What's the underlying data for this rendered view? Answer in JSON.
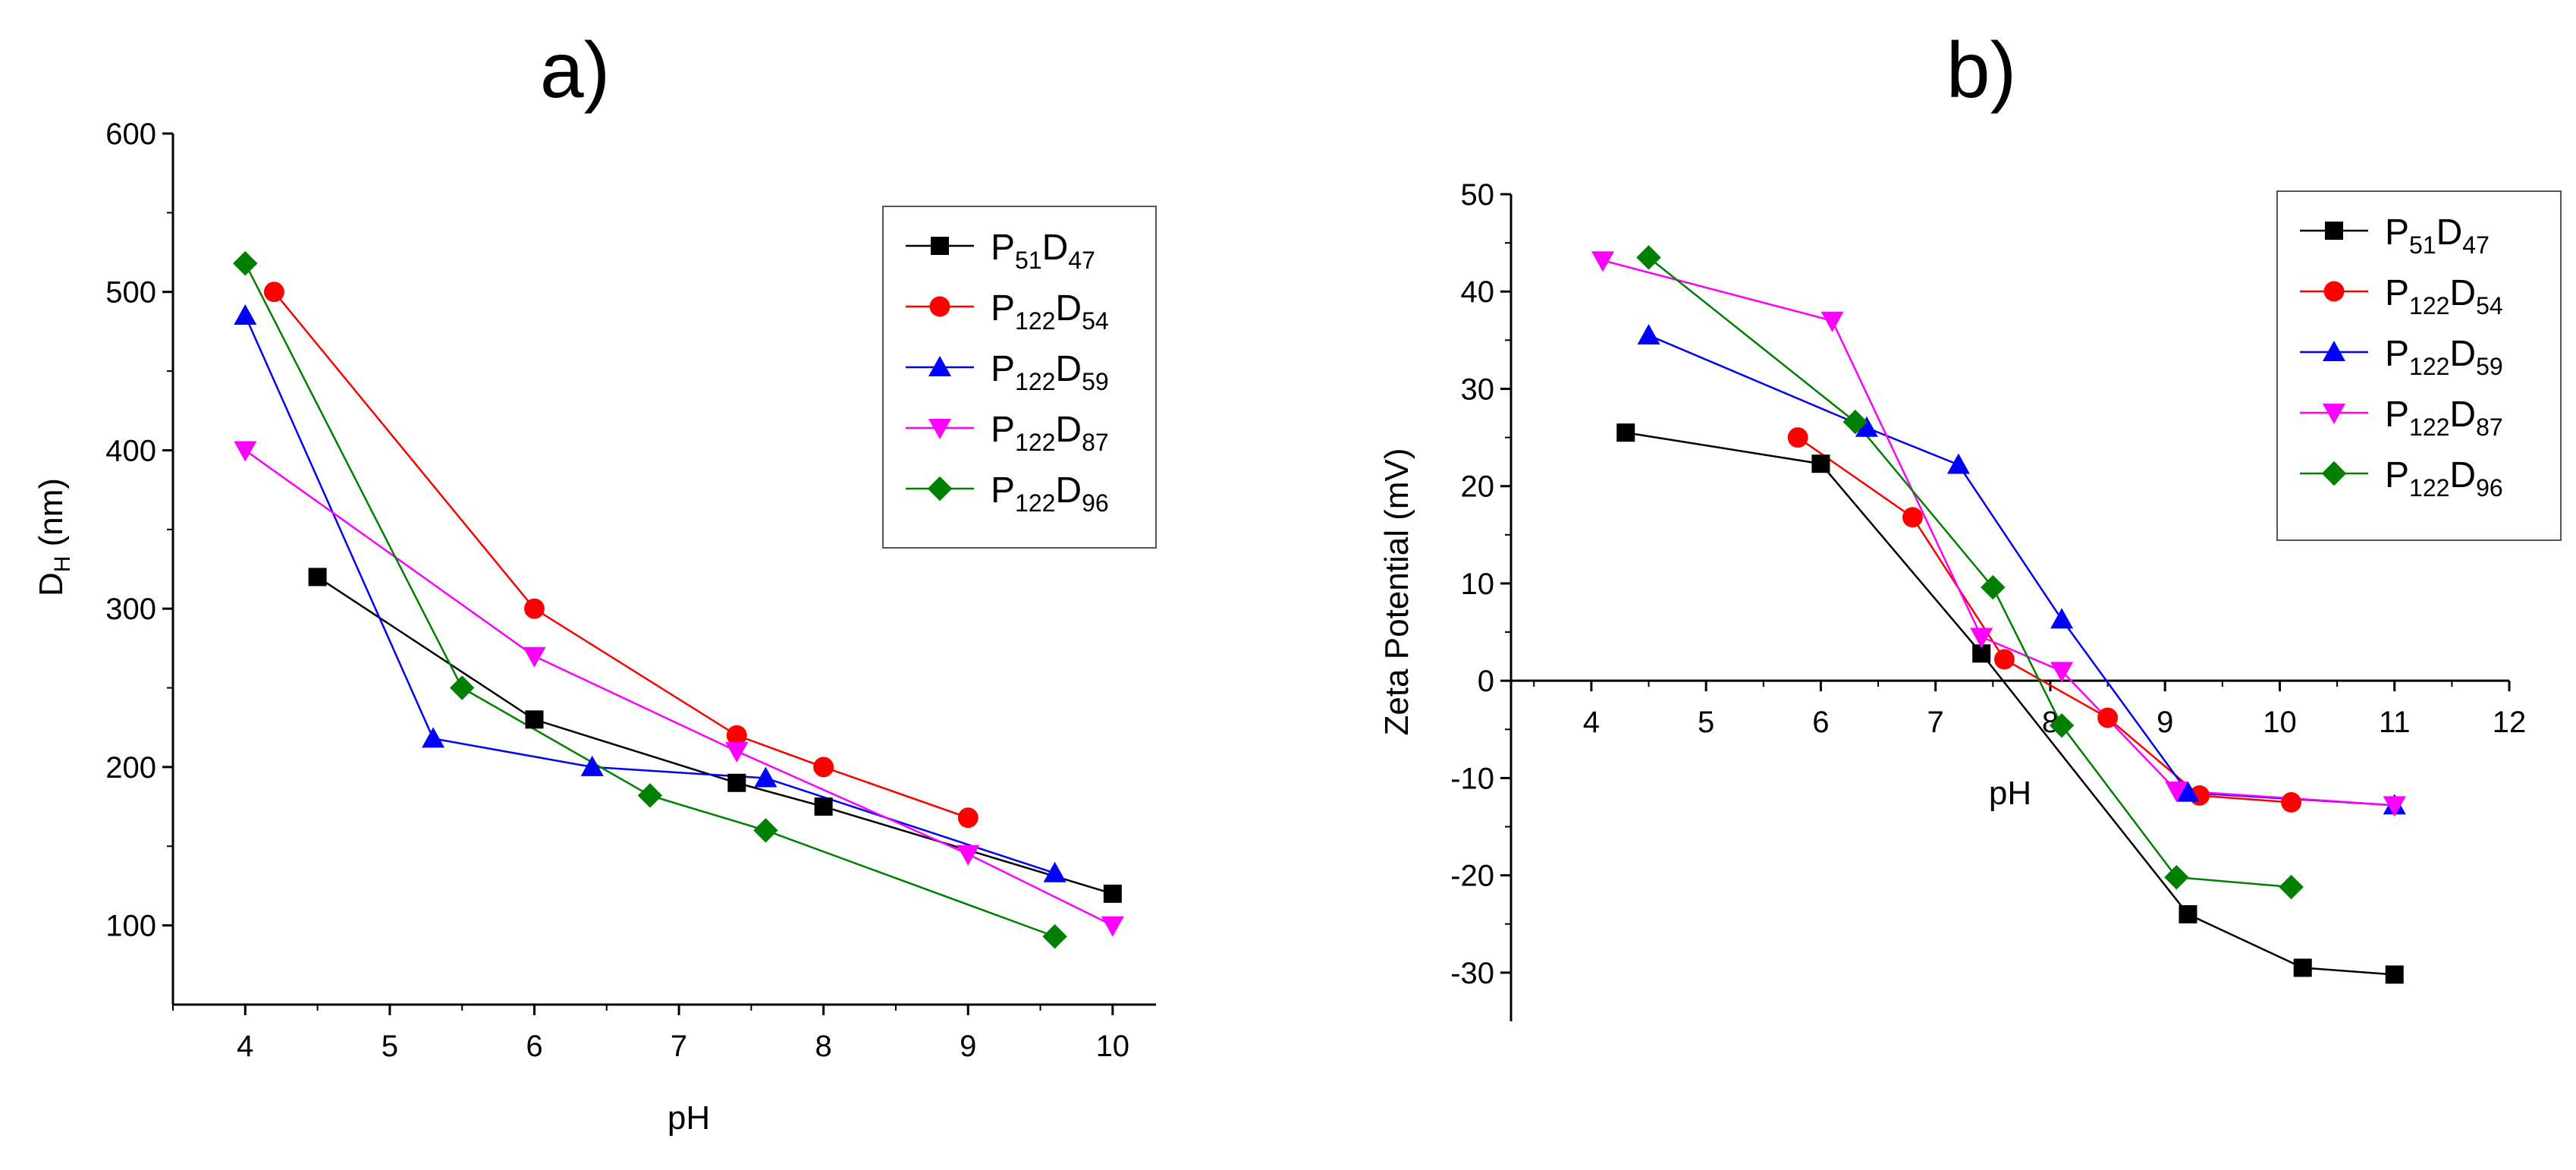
{
  "chart_data": [
    {
      "panel_label": "a)",
      "type": "line",
      "marker_style": "line+markers",
      "xlabel": "pH",
      "ylabel": {
        "main": "D",
        "sub": "H",
        "suffix": " (nm)"
      },
      "xlim": [
        3.5,
        10.3
      ],
      "ylim": [
        50,
        600
      ],
      "xticks": [
        4,
        5,
        6,
        7,
        8,
        9,
        10
      ],
      "yticks": [
        100,
        200,
        300,
        400,
        500,
        600
      ],
      "legend_position": "top-right",
      "series": [
        {
          "name": "P51D47",
          "label": {
            "p": "51",
            "d": "47"
          },
          "color": "#000000",
          "marker": "square",
          "points": [
            [
              4.5,
              320
            ],
            [
              6,
              230
            ],
            [
              7.4,
              190
            ],
            [
              8,
              175
            ],
            [
              10,
              120
            ]
          ]
        },
        {
          "name": "P122D54",
          "label": {
            "p": "122",
            "d": "54"
          },
          "color": "#ff0000",
          "marker": "circle",
          "points": [
            [
              4.2,
              500
            ],
            [
              6,
              300
            ],
            [
              7.4,
              220
            ],
            [
              8,
              200
            ],
            [
              9,
              168
            ]
          ]
        },
        {
          "name": "P122D59",
          "label": {
            "p": "122",
            "d": "59"
          },
          "color": "#0000ff",
          "marker": "triangle-up",
          "points": [
            [
              4,
              485
            ],
            [
              5.3,
              218
            ],
            [
              6.4,
              200
            ],
            [
              7.6,
              193
            ],
            [
              9.6,
              133
            ]
          ]
        },
        {
          "name": "P122D87",
          "label": {
            "p": "122",
            "d": "87"
          },
          "color": "#ff00ff",
          "marker": "triangle-down",
          "points": [
            [
              4,
              400
            ],
            [
              6,
              270
            ],
            [
              7.4,
              210
            ],
            [
              9,
              145
            ],
            [
              10,
              100
            ]
          ]
        },
        {
          "name": "P122D96",
          "label": {
            "p": "122",
            "d": "96"
          },
          "color": "#008000",
          "marker": "diamond",
          "points": [
            [
              4,
              518
            ],
            [
              5.5,
              250
            ],
            [
              6.8,
              182
            ],
            [
              7.6,
              160
            ],
            [
              9.6,
              93
            ]
          ]
        }
      ]
    },
    {
      "panel_label": "b)",
      "type": "line",
      "marker_style": "line+markers",
      "xlabel": "pH",
      "ylabel": "Zeta Potential (mV)",
      "xlim": [
        3.3,
        12
      ],
      "ylim": [
        -35,
        50
      ],
      "xticks": [
        4,
        5,
        6,
        7,
        8,
        9,
        10,
        11,
        12
      ],
      "yticks": [
        -30,
        -20,
        -10,
        0,
        10,
        20,
        30,
        40,
        50
      ],
      "x_axis_at_zero": true,
      "legend_position": "top-right",
      "series": [
        {
          "name": "P51D47",
          "label": {
            "p": "51",
            "d": "47"
          },
          "color": "#000000",
          "marker": "square",
          "points": [
            [
              4.3,
              25.5
            ],
            [
              6,
              22.3
            ],
            [
              7.4,
              2.8
            ],
            [
              9.2,
              -24
            ],
            [
              10.2,
              -29.5
            ],
            [
              11,
              -30.2
            ]
          ]
        },
        {
          "name": "P122D54",
          "label": {
            "p": "122",
            "d": "54"
          },
          "color": "#ff0000",
          "marker": "circle",
          "points": [
            [
              5.8,
              25
            ],
            [
              6.8,
              16.8
            ],
            [
              7.6,
              2.2
            ],
            [
              8.5,
              -3.8
            ],
            [
              9.3,
              -11.8
            ],
            [
              10.1,
              -12.5
            ]
          ]
        },
        {
          "name": "P122D59",
          "label": {
            "p": "122",
            "d": "59"
          },
          "color": "#0000ff",
          "marker": "triangle-up",
          "points": [
            [
              4.5,
              35.5
            ],
            [
              6.4,
              26
            ],
            [
              7.2,
              22.2
            ],
            [
              8.1,
              6.3
            ],
            [
              9.2,
              -11.5
            ],
            [
              11,
              -12.8
            ]
          ]
        },
        {
          "name": "P122D87",
          "label": {
            "p": "122",
            "d": "87"
          },
          "color": "#ff00ff",
          "marker": "triangle-down",
          "points": [
            [
              4.1,
              43.2
            ],
            [
              6.1,
              37
            ],
            [
              7.4,
              4.5
            ],
            [
              8.1,
              1
            ],
            [
              9.1,
              -11.3
            ],
            [
              11,
              -12.8
            ]
          ]
        },
        {
          "name": "P122D96",
          "label": {
            "p": "122",
            "d": "96"
          },
          "color": "#008000",
          "marker": "diamond",
          "points": [
            [
              4.5,
              43.5
            ],
            [
              6.3,
              26.6
            ],
            [
              7.5,
              9.6
            ],
            [
              8.1,
              -4.6
            ],
            [
              9.1,
              -20.2
            ],
            [
              10.1,
              -21.2
            ]
          ]
        }
      ]
    }
  ]
}
